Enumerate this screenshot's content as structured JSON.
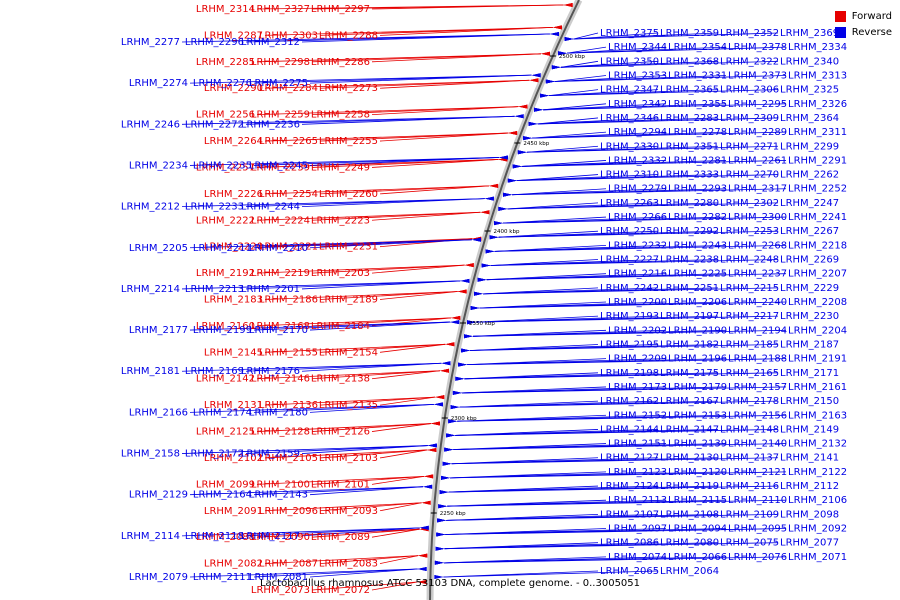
{
  "chart_data": {
    "type": "gene-map",
    "title": "Lactobacillus rhamnosus ATCC 53103 DNA, complete genome. - 0..3005051",
    "legend": [
      {
        "label": "Forward",
        "color": "#e60000"
      },
      {
        "label": "Reverse",
        "color": "#0000e6"
      }
    ],
    "colors": {
      "forward": "#e60000",
      "reverse": "#0000e6",
      "backbone": "#555555",
      "backbone_light": "#cccccc"
    },
    "ticks": [
      "2500 kbp",
      "2450 kbp",
      "2400 kbp",
      "2350 kbp",
      "2300 kbp",
      "2250 kbp"
    ],
    "forward_genes": [
      "LRHM_2327",
      "LRHM_2297",
      "LRHM_2314",
      "LRHM_2303",
      "LRHM_2288",
      "LRHM_2287",
      "LRHM_2298",
      "LRHM_2286",
      "LRHM_2285",
      "LRHM_2284",
      "LRHM_2273",
      "LRHM_2290",
      "LRHM_2259",
      "LRHM_2258",
      "LRHM_2256",
      "LRHM_2265",
      "LRHM_2255",
      "LRHM_2264",
      "LRHM_2239",
      "LRHM_2249",
      "LRHM_2257",
      "LRHM_2254",
      "LRHM_2260",
      "LRHM_2226",
      "LRHM_2224",
      "LRHM_2223",
      "LRHM_2222",
      "LRHM_2221",
      "LRHM_2231",
      "LRHM_2220",
      "LRHM_2219",
      "LRHM_2203",
      "LRHM_2192",
      "LRHM_2186",
      "LRHM_2189",
      "LRHM_2183",
      "LRHM_2168",
      "LRHM_2184",
      "LRHM_2160",
      "LRHM_2155",
      "LRHM_2154",
      "LRHM_2145",
      "LRHM_2146",
      "LRHM_2138",
      "LRHM_2142",
      "LRHM_2136",
      "LRHM_2135",
      "LRHM_2131",
      "LRHM_2128",
      "LRHM_2126",
      "LRHM_2125",
      "LRHM_2105",
      "LRHM_2103",
      "LRHM_2102",
      "LRHM_2100",
      "LRHM_2101",
      "LRHM_2099",
      "LRHM_2096",
      "LRHM_2093",
      "LRHM_2091",
      "LRHM_2090",
      "LRHM_2089",
      "LRHM_2088",
      "LRHM_2087",
      "LRHM_2083",
      "LRHM_2082",
      "LRHM_2073",
      "LRHM_2072"
    ],
    "reverse_genes_left": [
      "LRHM_2296",
      "LRHM_2312",
      "LRHM_2277",
      "LRHM_2276",
      "LRHM_2275",
      "LRHM_2274",
      "LRHM_2272",
      "LRHM_2236",
      "LRHM_2246",
      "LRHM_2235",
      "LRHM_2245",
      "LRHM_2234",
      "LRHM_2233",
      "LRHM_2244",
      "LRHM_2212",
      "LRHM_2211",
      "LRHM_2210",
      "LRHM_2205",
      "LRHM_2213",
      "LRHM_2201",
      "LRHM_2214",
      "LRHM_2199",
      "LRHM_2170",
      "LRHM_2177",
      "LRHM_2169",
      "LRHM_2176",
      "LRHM_2181",
      "LRHM_2174",
      "LRHM_2180",
      "LRHM_2166",
      "LRHM_2172",
      "LRHM_2159",
      "LRHM_2158",
      "LRHM_2164",
      "LRHM_2143",
      "LRHM_2129",
      "LRHM_2118",
      "LRHM_2117",
      "LRHM_2114",
      "LRHM_2111",
      "LRHM_2081",
      "LRHM_2079"
    ],
    "reverse_genes_right": [
      "LRHM_2375",
      "LRHM_2359",
      "LRHM_2352",
      "LRHM_2369",
      "LRHM_2344",
      "LRHM_2354",
      "LRHM_2378",
      "LRHM_2334",
      "LRHM_2350",
      "LRHM_2368",
      "LRHM_2322",
      "LRHM_2340",
      "LRHM_2353",
      "LRHM_2331",
      "LRHM_2373",
      "LRHM_2313",
      "LRHM_2347",
      "LRHM_2365",
      "LRHM_2306",
      "LRHM_2325",
      "LRHM_2342",
      "LRHM_2355",
      "LRHM_2295",
      "LRHM_2326",
      "LRHM_2346",
      "LRHM_2283",
      "LRHM_2309",
      "LRHM_2364",
      "LRHM_2294",
      "LRHM_2278",
      "LRHM_2289",
      "LRHM_2311",
      "LRHM_2330",
      "LRHM_2351",
      "LRHM_2271",
      "LRHM_2299",
      "LRHM_2332",
      "LRHM_2281",
      "LRHM_2261",
      "LRHM_2291",
      "LRHM_2310",
      "LRHM_2333",
      "LRHM_2270",
      "LRHM_2262",
      "LRHM_2279",
      "LRHM_2293",
      "LRHM_2317",
      "LRHM_2252",
      "LRHM_2263",
      "LRHM_2280",
      "LRHM_2302",
      "LRHM_2247",
      "LRHM_2266",
      "LRHM_2282",
      "LRHM_2300",
      "LRHM_2241",
      "LRHM_2250",
      "LRHM_2292",
      "LRHM_2253",
      "LRHM_2267",
      "LRHM_2232",
      "LRHM_2243",
      "LRHM_2268",
      "LRHM_2218",
      "LRHM_2227",
      "LRHM_2238",
      "LRHM_2248",
      "LRHM_2269",
      "LRHM_2216",
      "LRHM_2225",
      "LRHM_2237",
      "LRHM_2207",
      "LRHM_2242",
      "LRHM_2251",
      "LRHM_2215",
      "LRHM_2229",
      "LRHM_2200",
      "LRHM_2206",
      "LRHM_2240",
      "LRHM_2208",
      "LRHM_2193",
      "LRHM_2197",
      "LRHM_2217",
      "LRHM_2230",
      "LRHM_2202",
      "LRHM_2190",
      "LRHM_2194",
      "LRHM_2204",
      "LRHM_2195",
      "LRHM_2182",
      "LRHM_2185",
      "LRHM_2187",
      "LRHM_2209",
      "LRHM_2196",
      "LRHM_2188",
      "LRHM_2191",
      "LRHM_2198",
      "LRHM_2175",
      "LRHM_2165",
      "LRHM_2171",
      "LRHM_2173",
      "LRHM_2179",
      "LRHM_2157",
      "LRHM_2161",
      "LRHM_2162",
      "LRHM_2167",
      "LRHM_2178",
      "LRHM_2150",
      "LRHM_2152",
      "LRHM_2153",
      "LRHM_2156",
      "LRHM_2163",
      "LRHM_2144",
      "LRHM_2147",
      "LRHM_2148",
      "LRHM_2149",
      "LRHM_2151",
      "LRHM_2139",
      "LRHM_2140",
      "LRHM_2132",
      "LRHM_2127",
      "LRHM_2130",
      "LRHM_2137",
      "LRHM_2141",
      "LRHM_2123",
      "LRHM_2120",
      "LRHM_2121",
      "LRHM_2122",
      "LRHM_2124",
      "LRHM_2119",
      "LRHM_2116",
      "LRHM_2112",
      "LRHM_2113",
      "LRHM_2115",
      "LRHM_2110",
      "LRHM_2106",
      "LRHM_2107",
      "LRHM_2108",
      "LRHM_2109",
      "LRHM_2098",
      "LRHM_2097",
      "LRHM_2094",
      "LRHM_2095",
      "LRHM_2092",
      "LRHM_2086",
      "LRHM_2080",
      "LRHM_2075",
      "LRHM_2077",
      "LRHM_2074",
      "LRHM_2066",
      "LRHM_2076",
      "LRHM_2071",
      "LRHM_2065",
      "LRHM_2064"
    ]
  }
}
